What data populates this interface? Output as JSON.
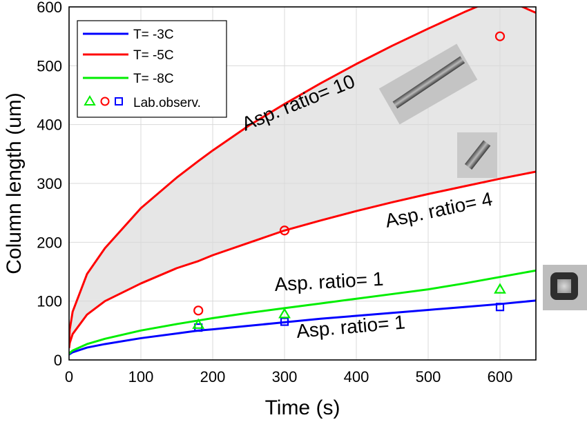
{
  "chart_data": {
    "type": "line",
    "xlabel": "Time (s)",
    "ylabel": "Column length (um)",
    "xlim": [
      0,
      650
    ],
    "ylim": [
      0,
      600
    ],
    "xticks": [
      0,
      100,
      200,
      300,
      400,
      500,
      600
    ],
    "yticks": [
      0,
      100,
      200,
      300,
      400,
      500,
      600
    ],
    "grid": true,
    "legend_position": "top-left",
    "colors": {
      "blue": "#0000ff",
      "red": "#ff0000",
      "green": "#00ee00",
      "shade": "#e6e6e6"
    },
    "legend": [
      {
        "label": "T= -3C",
        "kind": "line",
        "color": "#0000ff"
      },
      {
        "label": "T= -5C",
        "kind": "line",
        "color": "#ff0000"
      },
      {
        "label": "T= -8C",
        "kind": "line",
        "color": "#00ee00"
      },
      {
        "label": "Lab.observ.",
        "kind": "markers"
      }
    ],
    "series": [
      {
        "name": "T= -3C",
        "color": "#0000ff",
        "annotation": "Asp. ratio= 1",
        "x": [
          0,
          1,
          5,
          25,
          50,
          100,
          150,
          180,
          200,
          250,
          300,
          350,
          400,
          450,
          500,
          550,
          600,
          650
        ],
        "y": [
          9,
          10,
          13,
          21,
          27,
          37,
          45,
          50,
          52,
          58,
          64,
          70,
          75,
          80,
          85,
          90,
          95,
          101
        ]
      },
      {
        "name": "T= -8C",
        "color": "#00ee00",
        "annotation": "Asp. ratio= 1",
        "x": [
          0,
          1,
          5,
          25,
          50,
          100,
          150,
          180,
          200,
          250,
          300,
          350,
          400,
          450,
          500,
          550,
          600,
          650
        ],
        "y": [
          10,
          12,
          16,
          27,
          36,
          50,
          61,
          67,
          71,
          80,
          88,
          96,
          104,
          112,
          120,
          130,
          141,
          152
        ]
      },
      {
        "name": "T= -5C",
        "color": "#ff0000",
        "annotation": "Asp. ratio= 4",
        "x": [
          0,
          1,
          5,
          25,
          50,
          100,
          150,
          180,
          200,
          250,
          300,
          350,
          400,
          450,
          500,
          550,
          600,
          650
        ],
        "y": [
          20,
          29,
          44,
          77,
          100,
          130,
          156,
          168,
          178,
          199,
          220,
          237,
          253,
          268,
          282,
          295,
          308,
          320
        ]
      },
      {
        "name": "T= -5C",
        "color": "#ff0000",
        "annotation": "Asp. ratio= 10",
        "x": [
          0,
          1,
          5,
          25,
          50,
          100,
          150,
          180,
          200,
          250,
          300,
          350,
          400,
          450,
          500,
          550,
          600,
          650
        ],
        "y": [
          28,
          52,
          82,
          146,
          190,
          258,
          310,
          338,
          356,
          398,
          435,
          470,
          503,
          534,
          563,
          591,
          617,
          590
        ]
      }
    ],
    "observations": [
      {
        "marker": "square",
        "color": "#0000ff",
        "x": [
          180,
          300,
          600
        ],
        "y": [
          55,
          65,
          90
        ]
      },
      {
        "marker": "circle",
        "color": "#ff0000",
        "x": [
          180,
          300,
          600
        ],
        "y": [
          84,
          220,
          550
        ]
      },
      {
        "marker": "triangle",
        "color": "#00ee00",
        "x": [
          180,
          300,
          600
        ],
        "y": [
          60,
          78,
          120
        ]
      }
    ],
    "annotations": [
      "Asp. ratio= 10",
      "Asp. ratio= 4",
      "Asp. ratio= 1",
      "Asp. ratio= 1"
    ]
  },
  "photos": [
    {
      "name": "long-column-crystal-photo"
    },
    {
      "name": "short-column-crystal-photo"
    },
    {
      "name": "plate-crystal-photo"
    }
  ]
}
